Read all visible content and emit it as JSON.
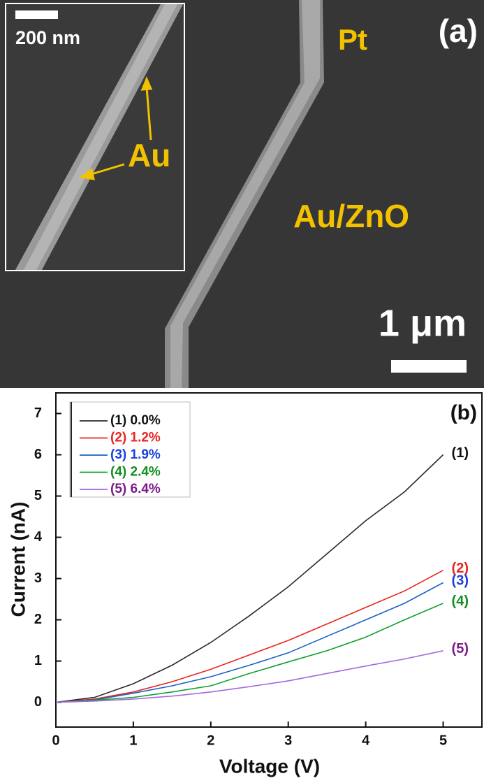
{
  "panel_a": {
    "label": "(a)",
    "electrode": "Pt",
    "material": "Au/ZnO",
    "scale": "1 μm",
    "inset_scale": "200 nm",
    "inset_particle": "Au"
  },
  "chart_data": {
    "type": "line",
    "panel_label": "(b)",
    "x_label": "Voltage (V)",
    "y_label": "Current (nA)",
    "x": [
      0,
      0.5,
      1,
      1.5,
      2,
      2.5,
      3,
      3.5,
      4,
      4.5,
      5
    ],
    "xlim": [
      0,
      5.5
    ],
    "ylim": [
      -0.6,
      7.5
    ],
    "xticks": [
      0,
      1,
      2,
      3,
      4,
      5
    ],
    "yticks": [
      0,
      1,
      2,
      3,
      4,
      5,
      6,
      7
    ],
    "legend": "upper left",
    "series": [
      {
        "name": "(1) 0.0%",
        "label": "(1)",
        "color": "#2a2a2a",
        "text_color": "#111111",
        "values": [
          0,
          0.12,
          0.45,
          0.9,
          1.45,
          2.1,
          2.8,
          3.6,
          4.4,
          5.1,
          6.0
        ]
      },
      {
        "name": "(2) 1.2%",
        "label": "(2)",
        "color": "#e8251f",
        "text_color": "#e8251f",
        "values": [
          0,
          0.08,
          0.25,
          0.5,
          0.8,
          1.15,
          1.5,
          1.9,
          2.3,
          2.7,
          3.2
        ]
      },
      {
        "name": "(3) 1.9%",
        "label": "(3)",
        "color": "#1a62c8",
        "text_color": "#1a3fe0",
        "values": [
          0,
          0.06,
          0.22,
          0.4,
          0.62,
          0.9,
          1.2,
          1.6,
          2.0,
          2.4,
          2.9
        ]
      },
      {
        "name": "(4) 2.4%",
        "label": "(4)",
        "color": "#10a030",
        "text_color": "#109020",
        "values": [
          0,
          0.05,
          0.12,
          0.25,
          0.4,
          0.7,
          0.98,
          1.25,
          1.58,
          2.0,
          2.4
        ]
      },
      {
        "name": "(5) 6.4%",
        "label": "(5)",
        "color": "#a468e0",
        "text_color": "#7b1a8b",
        "values": [
          0,
          0.03,
          0.08,
          0.15,
          0.25,
          0.38,
          0.52,
          0.7,
          0.88,
          1.05,
          1.25
        ]
      }
    ]
  }
}
